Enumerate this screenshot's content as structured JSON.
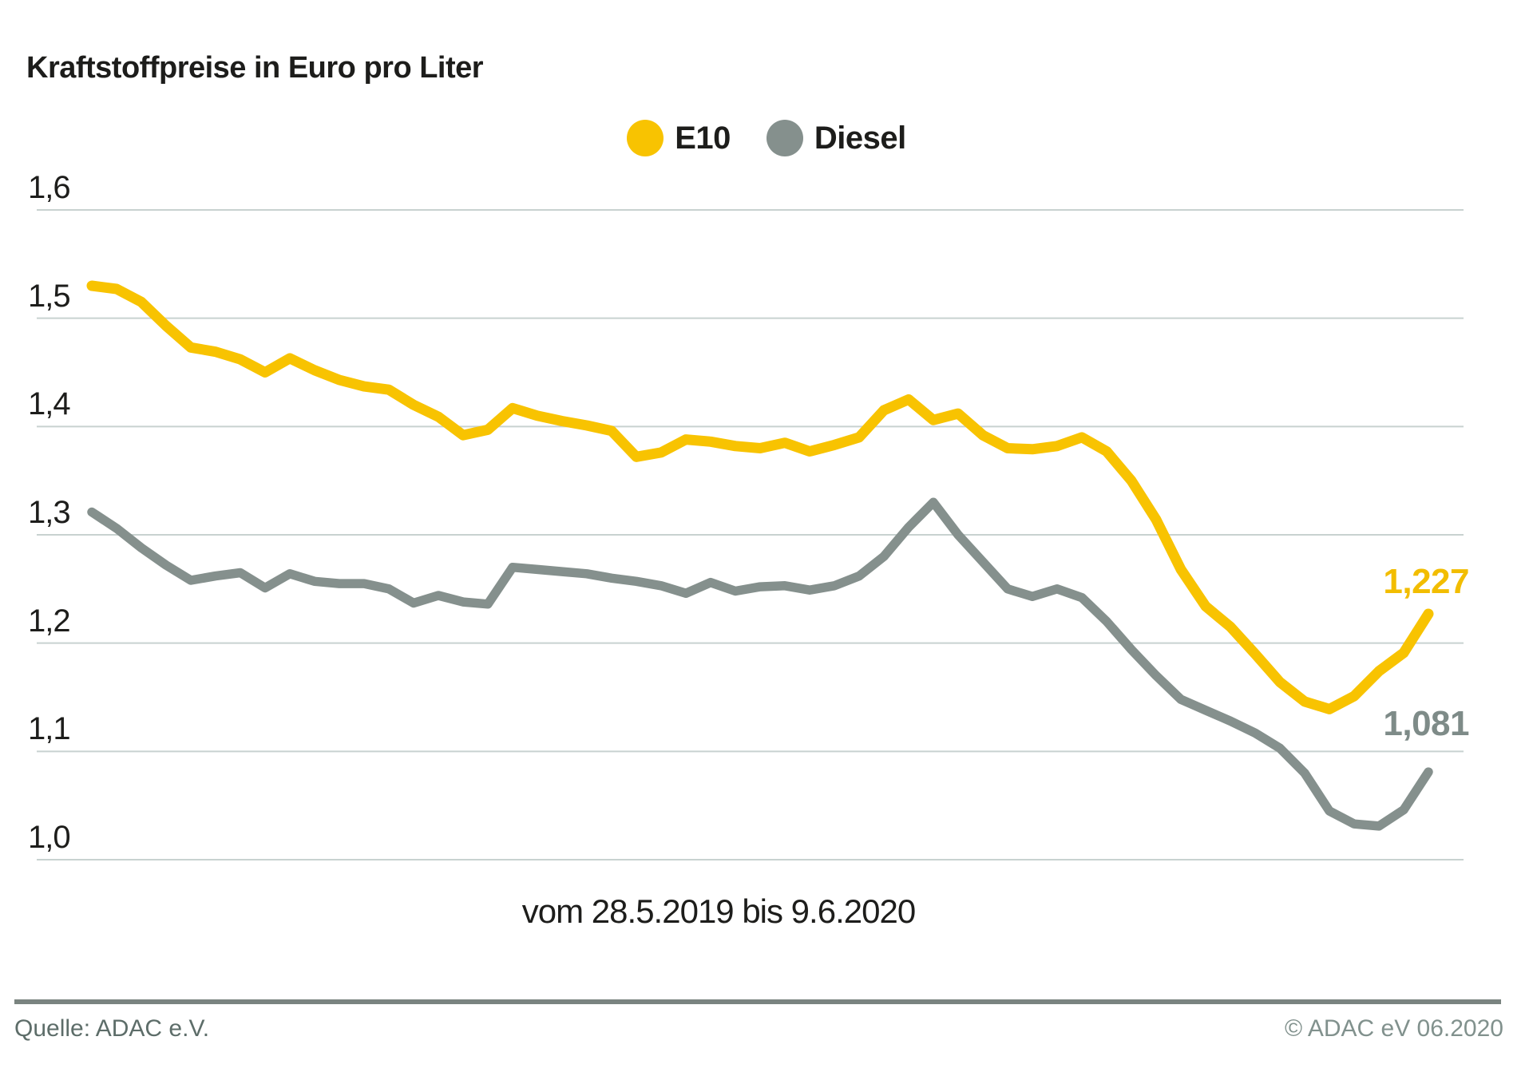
{
  "title": "Kraftstoffpreise in Euro pro Liter",
  "legend": [
    {
      "name": "e10",
      "label": "E10",
      "color": "#f8c301"
    },
    {
      "name": "diesel",
      "label": "Diesel",
      "color": "#85908d"
    }
  ],
  "chart_data": {
    "type": "line",
    "title": "Kraftstoffpreise in Euro pro Liter",
    "y_unit": "Euro pro Liter",
    "x_label": "vom 28.5.2019 bis 9.6.2020",
    "x_start": "28.5.2019",
    "x_end": "9.6.2020",
    "x_step": "weekly",
    "ylim": [
      1.0,
      1.6
    ],
    "grid": true,
    "legend_position": "top",
    "yticks": [
      {
        "value": 1.6,
        "label": "1,6"
      },
      {
        "value": 1.5,
        "label": "1,5"
      },
      {
        "value": 1.4,
        "label": "1,4"
      },
      {
        "value": 1.3,
        "label": "1,3"
      },
      {
        "value": 1.2,
        "label": "1,2"
      },
      {
        "value": 1.1,
        "label": "1,1"
      },
      {
        "value": 1.0,
        "label": "1,0"
      }
    ],
    "series": [
      {
        "name": "E10",
        "color": "#f8c301",
        "stroke_width": 13,
        "end_label": "1,227",
        "last_value": 1.227,
        "values": [
          1.53,
          1.527,
          1.515,
          1.493,
          1.473,
          1.469,
          1.462,
          1.45,
          1.463,
          1.452,
          1.443,
          1.437,
          1.434,
          1.42,
          1.409,
          1.392,
          1.397,
          1.417,
          1.41,
          1.405,
          1.401,
          1.396,
          1.372,
          1.376,
          1.388,
          1.386,
          1.382,
          1.38,
          1.385,
          1.377,
          1.383,
          1.39,
          1.415,
          1.425,
          1.406,
          1.412,
          1.392,
          1.38,
          1.379,
          1.382,
          1.39,
          1.377,
          1.35,
          1.314,
          1.268,
          1.234,
          1.215,
          1.19,
          1.164,
          1.146,
          1.139,
          1.151,
          1.174,
          1.191,
          1.227
        ]
      },
      {
        "name": "Diesel",
        "color": "#85908d",
        "stroke_width": 11.5,
        "end_label": "1,081",
        "last_value": 1.081,
        "values": [
          1.321,
          1.306,
          1.288,
          1.272,
          1.258,
          1.262,
          1.265,
          1.251,
          1.264,
          1.257,
          1.255,
          1.255,
          1.25,
          1.237,
          1.244,
          1.238,
          1.236,
          1.27,
          1.268,
          1.266,
          1.264,
          1.26,
          1.257,
          1.253,
          1.246,
          1.256,
          1.248,
          1.252,
          1.253,
          1.249,
          1.253,
          1.262,
          1.28,
          1.307,
          1.33,
          1.3,
          1.275,
          1.25,
          1.243,
          1.25,
          1.242,
          1.22,
          1.194,
          1.17,
          1.148,
          1.138,
          1.128,
          1.117,
          1.103,
          1.08,
          1.045,
          1.033,
          1.031,
          1.046,
          1.081
        ]
      }
    ]
  },
  "footer": {
    "source": "Quelle: ADAC e.V.",
    "copyright": "© ADAC eV 06.2020"
  }
}
